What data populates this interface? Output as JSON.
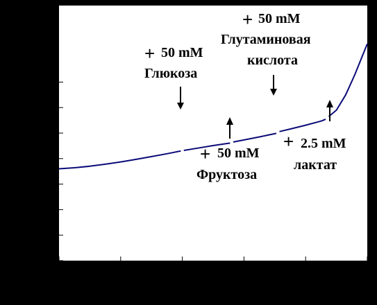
{
  "chart_data": {
    "type": "line",
    "title": "",
    "xlabel": "",
    "ylabel": "",
    "xlim": [
      0,
      100
    ],
    "ylim": [
      0,
      100
    ],
    "grid": false,
    "x_ticks": [
      0,
      20,
      40,
      60,
      80,
      100
    ],
    "y_ticks": [
      0,
      10,
      20,
      30,
      40,
      50,
      60,
      70
    ],
    "colors": {
      "background": "#000000",
      "plot_area": "#ffffff",
      "line": "#0a0a78",
      "text": "#000000"
    },
    "series": [
      {
        "segments": [
          {
            "x": [
              0,
              5,
              10,
              15,
              20,
              25,
              30,
              35,
              39.5
            ],
            "y": [
              36,
              36.4,
              37,
              37.8,
              38.7,
              39.7,
              40.8,
              41.9,
              43
            ]
          },
          {
            "x": [
              40.5,
              45,
              50,
              55.5
            ],
            "y": [
              43.2,
              44.1,
              45.1,
              46.1
            ]
          },
          {
            "x": [
              56.5,
              60,
              65,
              70.5
            ],
            "y": [
              46.5,
              47.3,
              48.5,
              49.9
            ]
          },
          {
            "x": [
              71.5,
              75,
              80,
              85,
              86.5
            ],
            "y": [
              50.6,
              51.6,
              53.1,
              54.7,
              55.4
            ]
          },
          {
            "x": [
              87.5,
              90,
              93,
              96,
              98,
              100
            ],
            "y": [
              56.5,
              59,
              65,
              73,
              79,
              85
            ]
          }
        ]
      }
    ],
    "annotations": [
      {
        "id": "glucose",
        "plus": "+",
        "lines": [
          "50 mM",
          "Глюкоза"
        ],
        "x": 40,
        "direction": "down"
      },
      {
        "id": "fructose",
        "plus": "+",
        "lines": [
          "50 mM",
          "Фруктоза"
        ],
        "x": 55.8,
        "direction": "up"
      },
      {
        "id": "glutamate",
        "plus": "+",
        "lines": [
          "50 mM",
          "Глутаминовая",
          "кислота"
        ],
        "x": 70.7,
        "direction": "down"
      },
      {
        "id": "lactate",
        "plus": "+",
        "lines": [
          "2.5 mM",
          "лактат"
        ],
        "x": 87.5,
        "direction": "up"
      }
    ]
  }
}
